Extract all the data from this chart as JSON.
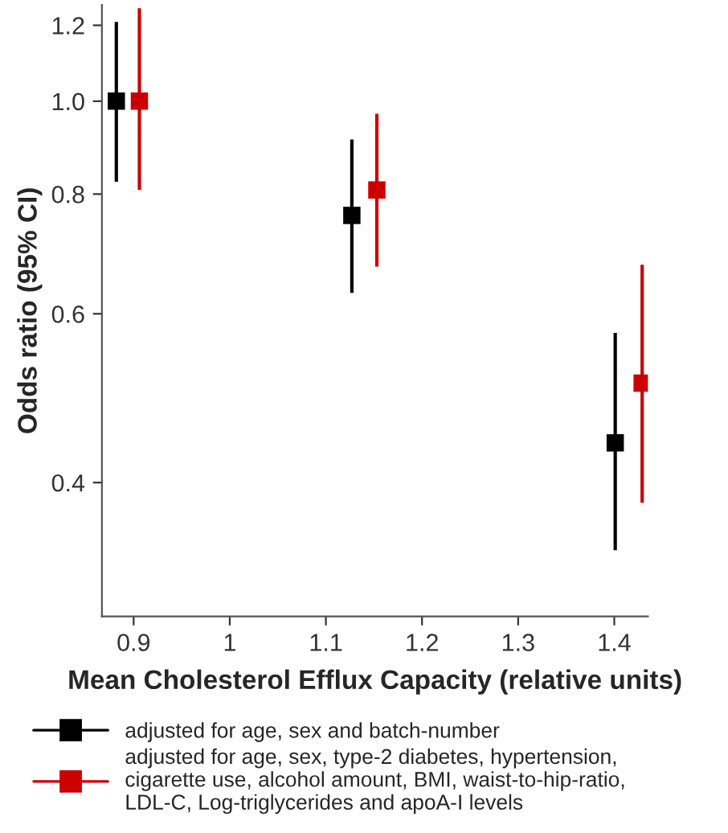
{
  "chart_data": {
    "type": "scatter",
    "xlabel": "Mean Cholesterol Efflux Capacity (relative units)",
    "ylabel": "Odds ratio (95% CI)",
    "log": "y",
    "xlim": [
      0.867,
      1.435
    ],
    "xticks": [
      0.9,
      1,
      1.1,
      1.2,
      1.3,
      1.4
    ],
    "ylim": [
      0.29,
      1.26
    ],
    "yticks": [
      {
        "value": 0.4,
        "label": "0.4"
      },
      {
        "value": 0.6,
        "label": "0.6"
      },
      {
        "value": 0.8,
        "label": "0.8"
      },
      {
        "value": 1.0,
        "label": "1.0"
      },
      {
        "value": 1.2,
        "label": "1.2"
      }
    ],
    "marker": "square",
    "grid": false,
    "legend": "bottom",
    "series": [
      {
        "name": "adjusted for age, sex and batch-number",
        "color": "#000000",
        "x": [
          0.882,
          1.127,
          1.401
        ],
        "values": [
          1.0,
          0.76,
          0.44
        ],
        "errors": [
          [
            0.824,
            1.21
          ],
          [
            0.631,
            0.912
          ],
          [
            0.34,
            0.573
          ]
        ]
      },
      {
        "name": "adjusted for age, sex, type-2 diabetes, hypertension,\ncigarette use, alcohol amount, BMI, waist-to-hip-ratio,\nLDL-C, Log-triglycerides and apoA-I levels",
        "color": "#cc0000",
        "x": [
          0.906,
          1.153,
          1.429
        ],
        "values": [
          1.0,
          0.808,
          0.508
        ],
        "errors": [
          [
            0.808,
            1.25
          ],
          [
            0.672,
            0.97
          ],
          [
            0.381,
            0.675
          ]
        ]
      }
    ]
  }
}
